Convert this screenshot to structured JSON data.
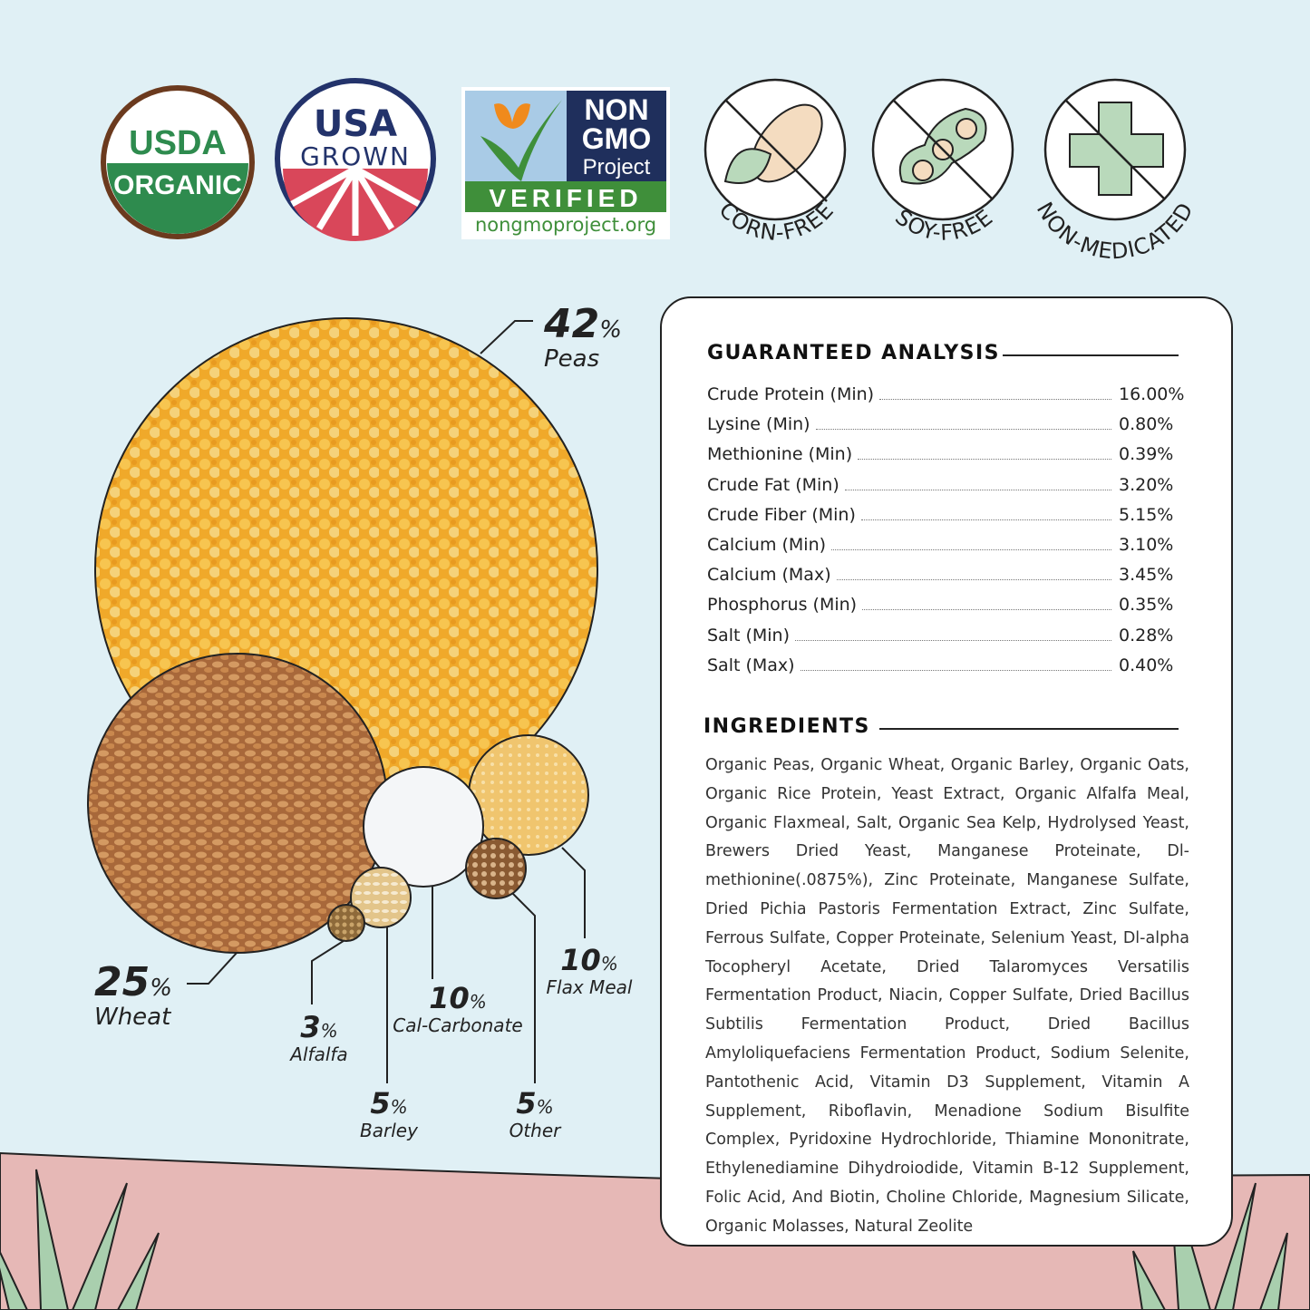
{
  "badges": [
    {
      "name": "usda-organic",
      "lines": [
        "USDA",
        "ORGANIC"
      ]
    },
    {
      "name": "usa-grown",
      "lines": [
        "USA",
        "GROWN"
      ]
    },
    {
      "name": "non-gmo",
      "lines": [
        "NON",
        "GMO",
        "Project",
        "VERIFIED",
        "nongmoproject.org"
      ]
    },
    {
      "name": "corn-free",
      "label": "CORN-FREE"
    },
    {
      "name": "soy-free",
      "label": "SOY-FREE"
    },
    {
      "name": "non-medicated",
      "label": "NON-MEDICATED"
    }
  ],
  "composition": [
    {
      "name": "peas",
      "pct": "42",
      "unit": "%",
      "label": "Peas",
      "color": "#f2b53a"
    },
    {
      "name": "wheat",
      "pct": "25",
      "unit": "%",
      "label": "Wheat",
      "color": "#c98a4e"
    },
    {
      "name": "alfalfa",
      "pct": "3",
      "unit": "%",
      "label": "Alfalfa",
      "color": "#b58a4a"
    },
    {
      "name": "cal-carbonate",
      "pct": "10",
      "unit": "%",
      "label": "Cal-Carbonate",
      "color": "#f4f6f8"
    },
    {
      "name": "barley",
      "pct": "5",
      "unit": "%",
      "label": "Barley",
      "color": "#e3c58a"
    },
    {
      "name": "other",
      "pct": "5",
      "unit": "%",
      "label": "Other",
      "color": "#8a5a32"
    },
    {
      "name": "flax-meal",
      "pct": "10",
      "unit": "%",
      "label": "Flax Meal",
      "color": "#f0c56e"
    }
  ],
  "analysis": {
    "title": "GUARANTEED ANALYSIS",
    "rows": [
      {
        "label": "Crude Protein (Min)",
        "value": "16.00%"
      },
      {
        "label": "Lysine (Min)",
        "value": "0.80%"
      },
      {
        "label": "Methionine (Min)",
        "value": "0.39%"
      },
      {
        "label": "Crude Fat (Min)",
        "value": "3.20%"
      },
      {
        "label": "Crude Fiber (Min)",
        "value": "5.15%"
      },
      {
        "label": "Calcium (Min)",
        "value": "3.10%"
      },
      {
        "label": "Calcium (Max)",
        "value": "3.45%"
      },
      {
        "label": "Phosphorus (Min)",
        "value": "0.35%"
      },
      {
        "label": "Salt (Min)",
        "value": "0.28%"
      },
      {
        "label": "Salt (Max)",
        "value": "0.40%"
      }
    ]
  },
  "ingredients": {
    "title": "INGREDIENTS",
    "text": "Organic Peas, Organic Wheat, Organic Barley, Organic Oats, Organic Rice Protein, Yeast Extract, Organic Alfalfa Meal, Organic Flaxmeal, Salt, Organic Sea Kelp, Hydrolysed Yeast, Brewers Dried Yeast, Manganese Proteinate, Dl-methionine(.0875%), Zinc Proteinate, Manganese Sulfate, Dried Pichia Pastoris Fermentation Extract, Zinc Sulfate, Ferrous Sulfate, Copper Proteinate, Selenium Yeast, Dl-alpha Tocopheryl Acetate, Dried Talaromyces Versatilis Fermentation Product, Niacin, Copper Sulfate, Dried Bacillus Subtilis Fermentation Product, Dried Bacillus Amyloliquefaciens Fermentation Product, Sodium Selenite, Pantothenic Acid, Vitamin D3 Supplement, Vitamin A Supplement, Riboflavin, Menadione Sodium Bisulfite Complex, Pyridoxine Hydrochloride, Thiamine Mononitrate, Ethylenediamine Dihydroiodide, Vitamin B-12 Supplement, Folic Acid, And Biotin, Choline Chloride, Magnesium Silicate, Organic Molasses, Natural Zeolite"
  },
  "colors": {
    "background": "#e0f0f5",
    "ground": "#e6b8b6",
    "grass": "#a9cfae",
    "usda_green": "#2e8b4e",
    "usda_brown": "#6b3a1e",
    "usa_navy": "#23336b",
    "usa_red": "#d9475a",
    "nongmo_green": "#3f8f3a",
    "nongmo_navy": "#1f2f5c",
    "icon_green": "#b9d9bb"
  }
}
